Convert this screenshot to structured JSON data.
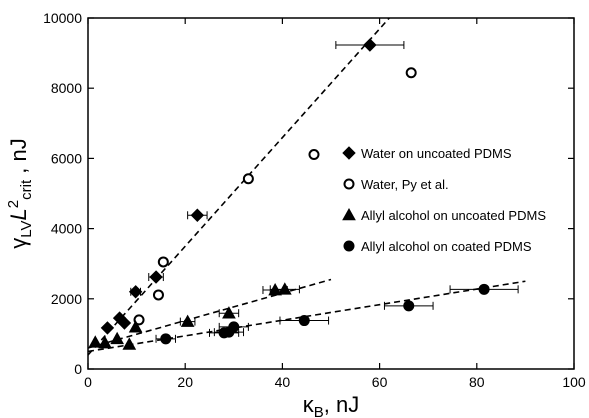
{
  "chart_data": {
    "type": "scatter",
    "xlabel": {
      "main": "κ",
      "sub": "B",
      "unit": ", nJ"
    },
    "ylabel": {
      "main": "γ",
      "sub1": "LV",
      "mid": "L",
      "sup": "2",
      "sub2": "crit",
      "unit": " , nJ"
    },
    "xlim": [
      0,
      100
    ],
    "ylim": [
      0,
      10000
    ],
    "x_ticks": [
      "0",
      "20",
      "40",
      "60",
      "80",
      "100"
    ],
    "y_ticks": [
      "0",
      "2000",
      "4000",
      "6000",
      "8000",
      "10000"
    ],
    "grid": false,
    "legend_position": "center-right",
    "series": [
      {
        "name": "Water on uncoated PDMS",
        "marker": "diamond",
        "filled": true,
        "points": [
          {
            "x": 4.0,
            "y": 1170
          },
          {
            "x": 6.5,
            "y": 1450
          },
          {
            "x": 7.5,
            "y": 1310
          },
          {
            "x": 9.8,
            "y": 2200,
            "xerr": 1.0
          },
          {
            "x": 14.0,
            "y": 2620,
            "xerr": 1.5
          },
          {
            "x": 22.5,
            "y": 4380,
            "xerr": 2.0
          },
          {
            "x": 58.0,
            "y": 9230,
            "xerr": 7.0
          }
        ]
      },
      {
        "name": "Water, Py et al.",
        "marker": "circle",
        "filled": false,
        "points": [
          {
            "x": 10.5,
            "y": 1400
          },
          {
            "x": 14.5,
            "y": 2110
          },
          {
            "x": 15.5,
            "y": 3050
          },
          {
            "x": 33.0,
            "y": 5420
          },
          {
            "x": 46.5,
            "y": 6110
          },
          {
            "x": 66.5,
            "y": 8440
          }
        ]
      },
      {
        "name": "Allyl alcohol on uncoated PDMS",
        "marker": "triangle",
        "filled": true,
        "points": [
          {
            "x": 1.5,
            "y": 760
          },
          {
            "x": 3.5,
            "y": 740
          },
          {
            "x": 6.0,
            "y": 860
          },
          {
            "x": 8.5,
            "y": 700
          },
          {
            "x": 9.8,
            "y": 1190
          },
          {
            "x": 20.5,
            "y": 1350,
            "xerr": 1.5
          },
          {
            "x": 29.0,
            "y": 1590,
            "xerr": 2.0
          },
          {
            "x": 38.5,
            "y": 2250,
            "xerr": 2.5
          },
          {
            "x": 40.5,
            "y": 2270,
            "xerr": 3.0
          }
        ]
      },
      {
        "name": "Allyl alcohol on coated PDMS",
        "marker": "circle",
        "filled": true,
        "points": [
          {
            "x": 16.0,
            "y": 860,
            "xerr": 2.0
          },
          {
            "x": 28.0,
            "y": 1030,
            "xerr": 3.0
          },
          {
            "x": 29.0,
            "y": 1050,
            "xerr": 3.0
          },
          {
            "x": 30.0,
            "y": 1200,
            "xerr": 3.0
          },
          {
            "x": 44.5,
            "y": 1380,
            "xerr": 5.0
          },
          {
            "x": 66.0,
            "y": 1800,
            "xerr": 5.0
          },
          {
            "x": 81.5,
            "y": 2270,
            "xerr": 7.0
          }
        ]
      }
    ],
    "fit_lines": [
      {
        "style": "dashed",
        "x": [
          0,
          62
        ],
        "y": [
          400,
          10000
        ]
      },
      {
        "style": "dashed",
        "x": [
          0,
          50
        ],
        "y": [
          600,
          2550
        ]
      },
      {
        "style": "dashed",
        "x": [
          0,
          90
        ],
        "y": [
          500,
          2500
        ]
      }
    ]
  }
}
